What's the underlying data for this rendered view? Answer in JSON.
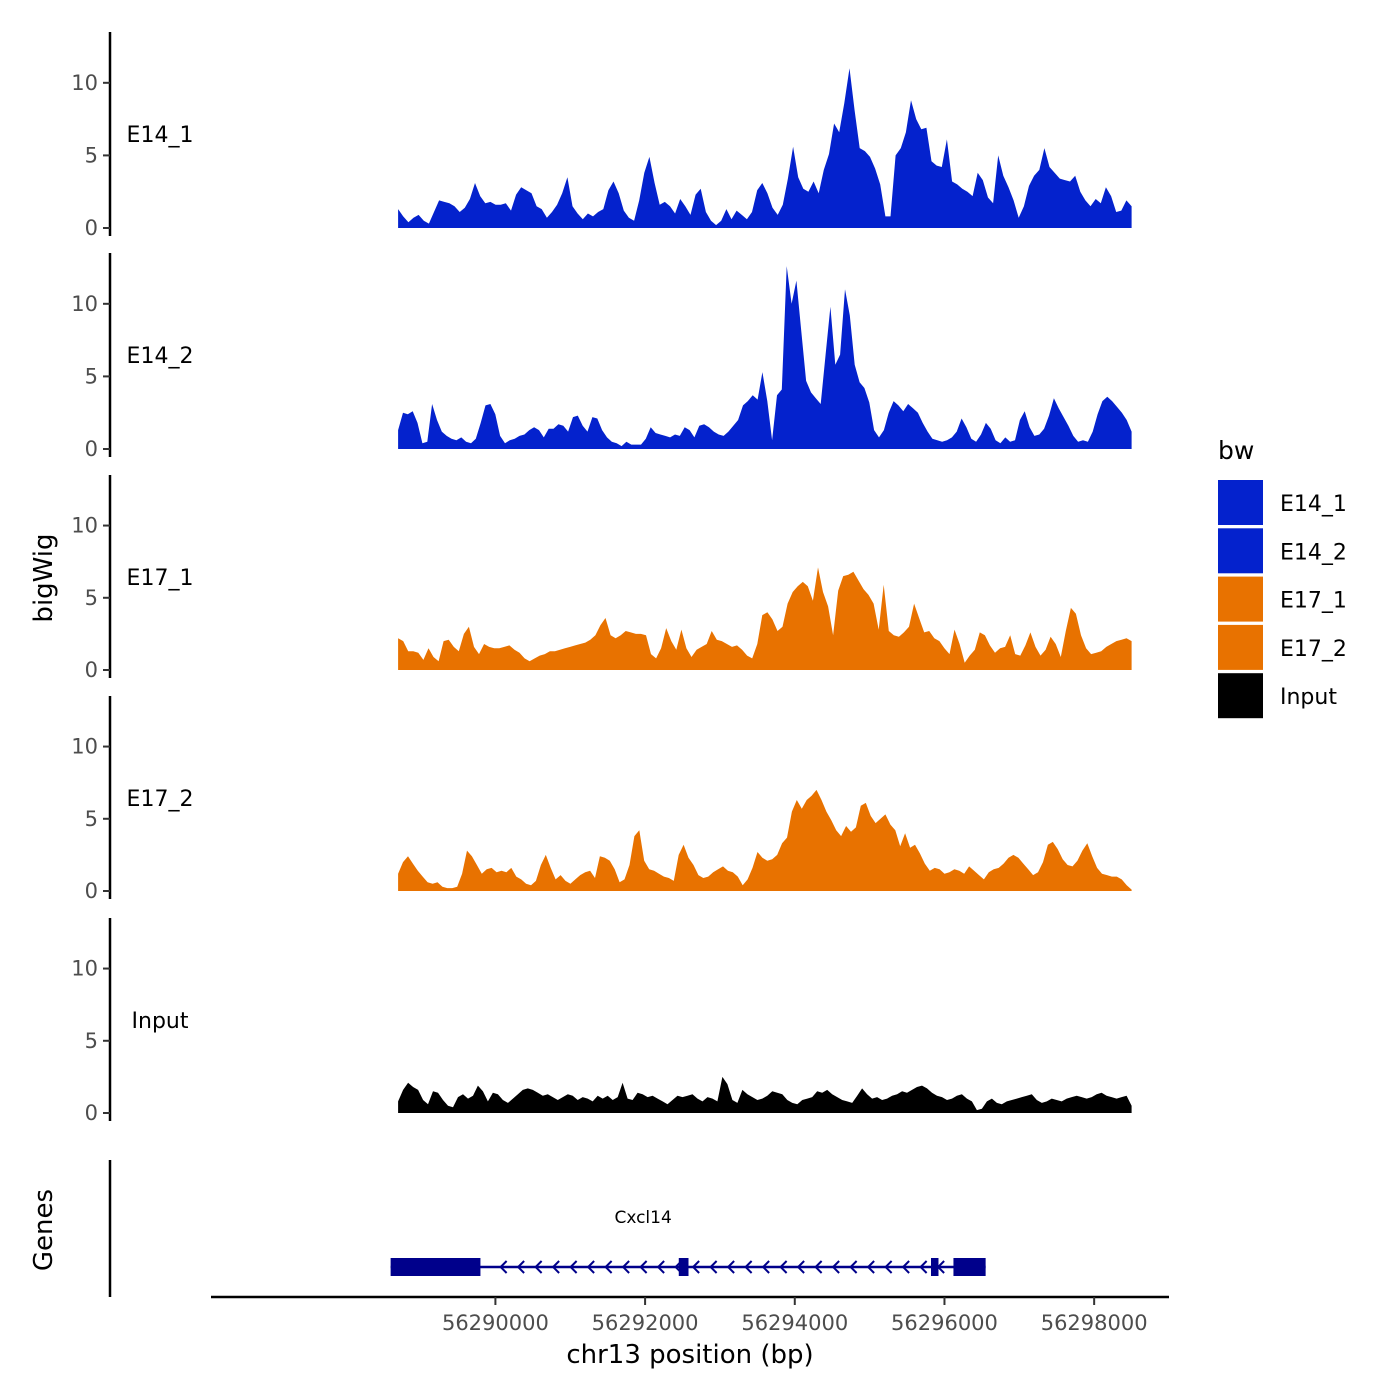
{
  "chart_data": {
    "type": "area",
    "ylabel": "bigWig",
    "xlabel": "chr13 position (bp)",
    "ylim": [
      0,
      13.5
    ],
    "xlim": [
      56286200,
      56299000
    ],
    "y_ticks": [
      0,
      5,
      10
    ],
    "x_ticks": [
      56290000,
      56292000,
      56294000,
      56296000,
      56298000
    ],
    "x_tick_labels": [
      "56290000",
      "56292000",
      "56294000",
      "56296000",
      "56298000"
    ],
    "x_range_data": [
      56288700,
      56298500
    ],
    "tracks": [
      {
        "name": "E14_1",
        "label": "E14_1",
        "color": "#0422CD",
        "values": [
          1.3,
          0.8,
          0.4,
          0.7,
          0.9,
          0.5,
          0.3,
          1.1,
          1.9,
          1.8,
          1.7,
          1.5,
          1.1,
          1.4,
          2.0,
          3.1,
          2.2,
          1.7,
          1.8,
          1.6,
          1.6,
          1.7,
          1.2,
          2.3,
          2.8,
          2.6,
          2.4,
          1.5,
          1.3,
          0.7,
          1.1,
          1.6,
          2.4,
          3.5,
          1.5,
          1.0,
          0.6,
          1.0,
          0.8,
          1.1,
          1.3,
          2.6,
          3.2,
          2.4,
          1.2,
          0.7,
          0.5,
          1.9,
          3.8,
          4.9,
          3.1,
          1.6,
          1.8,
          1.5,
          1.0,
          2.0,
          1.5,
          0.9,
          2.3,
          2.7,
          1.1,
          0.5,
          0.2,
          0.5,
          1.3,
          0.6,
          1.2,
          0.9,
          0.6,
          1.1,
          2.6,
          3.1,
          2.4,
          1.4,
          0.9,
          1.6,
          3.4,
          5.6,
          3.5,
          2.7,
          2.5,
          3.2,
          2.4,
          4.0,
          5.1,
          7.2,
          6.6,
          8.6,
          11.0,
          8.1,
          5.5,
          5.3,
          4.9,
          4.1,
          3.0,
          0.8,
          0.8,
          5.0,
          5.5,
          6.6,
          8.8,
          7.5,
          6.8,
          6.9,
          4.6,
          4.3,
          4.2,
          6.1,
          3.2,
          3.0,
          2.7,
          2.5,
          2.2,
          3.8,
          3.3,
          2.1,
          1.7,
          5.0,
          3.6,
          2.8,
          1.9,
          0.7,
          1.5,
          2.9,
          3.6,
          4.0,
          5.5,
          4.2,
          3.8,
          3.4,
          3.3,
          3.2,
          3.6,
          2.5,
          1.9,
          1.5,
          2.0,
          1.7,
          2.8,
          2.2,
          1.1,
          1.2,
          1.9,
          1.5
        ]
      },
      {
        "name": "E14_2",
        "label": "E14_2",
        "color": "#0422CD",
        "values": [
          1.3,
          2.5,
          2.4,
          2.6,
          1.8,
          0.4,
          0.5,
          3.1,
          2.0,
          1.2,
          0.9,
          0.7,
          0.6,
          0.8,
          0.5,
          0.4,
          0.7,
          1.8,
          3.0,
          3.1,
          2.4,
          0.9,
          0.4,
          0.6,
          0.7,
          0.9,
          1.0,
          1.3,
          1.5,
          1.3,
          0.8,
          1.4,
          1.4,
          1.7,
          1.6,
          1.2,
          2.2,
          2.3,
          1.6,
          1.2,
          2.2,
          2.1,
          1.3,
          0.8,
          0.5,
          0.4,
          0.2,
          0.5,
          0.3,
          0.3,
          0.3,
          0.7,
          1.5,
          1.1,
          1.0,
          0.9,
          0.8,
          1.0,
          0.9,
          1.5,
          1.3,
          0.8,
          1.6,
          1.7,
          1.5,
          1.2,
          1.0,
          0.9,
          1.2,
          1.6,
          2.0,
          3.0,
          3.3,
          3.7,
          3.4,
          5.3,
          3.3,
          0.6,
          3.7,
          4.1,
          12.6,
          10.0,
          11.6,
          8.1,
          4.7,
          3.9,
          3.5,
          3.1,
          6.5,
          9.8,
          5.8,
          6.5,
          11.0,
          9.2,
          5.8,
          4.6,
          4.2,
          3.2,
          1.3,
          0.8,
          1.3,
          2.5,
          3.3,
          3.0,
          2.6,
          3.1,
          2.8,
          2.5,
          1.8,
          1.2,
          0.7,
          0.6,
          0.5,
          0.6,
          0.8,
          1.2,
          2.1,
          1.5,
          0.7,
          0.5,
          1.0,
          1.8,
          1.4,
          0.6,
          0.4,
          0.8,
          0.5,
          0.6,
          2.0,
          2.6,
          1.5,
          0.9,
          1.0,
          1.4,
          2.3,
          3.5,
          2.8,
          2.2,
          1.6,
          0.9,
          0.5,
          0.6,
          0.5,
          1.2,
          2.4,
          3.3,
          3.6,
          3.3,
          2.9,
          2.5,
          2.0,
          1.2
        ]
      },
      {
        "name": "E17_1",
        "label": "E17_1",
        "color": "#E87200",
        "values": [
          2.2,
          2.0,
          1.3,
          1.3,
          1.2,
          0.7,
          1.5,
          0.9,
          0.6,
          2.0,
          2.1,
          1.6,
          1.3,
          2.5,
          3.0,
          1.6,
          1.1,
          1.8,
          1.6,
          1.5,
          1.5,
          1.6,
          1.7,
          1.4,
          1.2,
          0.8,
          0.6,
          0.8,
          1.0,
          1.1,
          1.3,
          1.3,
          1.4,
          1.5,
          1.6,
          1.7,
          1.8,
          1.9,
          2.1,
          2.4,
          3.1,
          3.6,
          2.4,
          2.2,
          2.4,
          2.7,
          2.6,
          2.5,
          2.5,
          2.4,
          1.1,
          0.8,
          1.5,
          2.9,
          2.0,
          1.4,
          2.8,
          1.5,
          0.9,
          1.4,
          1.6,
          1.8,
          2.7,
          2.1,
          2.0,
          1.8,
          1.6,
          1.7,
          1.4,
          1.0,
          0.8,
          1.8,
          3.8,
          4.0,
          3.5,
          2.7,
          3.0,
          4.6,
          5.4,
          5.8,
          6.1,
          5.8,
          4.8,
          7.1,
          5.4,
          4.4,
          2.4,
          5.5,
          6.5,
          6.6,
          6.8,
          6.2,
          5.6,
          5.2,
          4.6,
          2.8,
          5.9,
          2.7,
          2.4,
          2.3,
          2.6,
          3.0,
          4.6,
          3.6,
          2.6,
          2.7,
          2.2,
          2.0,
          1.5,
          1.1,
          2.8,
          1.8,
          0.5,
          1.0,
          1.4,
          2.6,
          2.4,
          1.7,
          1.2,
          1.5,
          1.6,
          2.4,
          1.1,
          1.0,
          1.7,
          2.6,
          1.6,
          1.0,
          1.4,
          2.3,
          1.8,
          0.9,
          2.7,
          4.3,
          3.9,
          2.4,
          1.5,
          1.1,
          1.2,
          1.3,
          1.6,
          1.8,
          2.0,
          2.1,
          2.2,
          2.0
        ]
      },
      {
        "name": "E17_2",
        "label": "E17_2",
        "color": "#E87200",
        "values": [
          1.2,
          2.0,
          2.4,
          1.9,
          1.4,
          1.0,
          0.6,
          0.5,
          0.6,
          0.3,
          0.2,
          0.2,
          0.3,
          1.2,
          2.8,
          2.4,
          1.8,
          1.2,
          1.5,
          1.6,
          1.3,
          1.4,
          1.3,
          1.6,
          1.0,
          0.8,
          0.5,
          0.4,
          0.7,
          1.8,
          2.5,
          1.6,
          0.8,
          1.1,
          0.7,
          0.5,
          0.8,
          1.1,
          1.3,
          1.4,
          0.9,
          2.4,
          2.3,
          2.1,
          1.5,
          0.6,
          0.8,
          1.8,
          3.8,
          4.2,
          2.1,
          1.5,
          1.4,
          1.2,
          1.0,
          0.9,
          0.7,
          2.5,
          3.2,
          2.3,
          1.8,
          1.1,
          0.9,
          1.0,
          1.3,
          1.5,
          1.7,
          1.4,
          1.3,
          1.0,
          0.4,
          0.8,
          1.6,
          2.7,
          2.3,
          2.1,
          2.2,
          2.5,
          3.3,
          3.7,
          5.5,
          6.3,
          5.7,
          6.3,
          6.6,
          7.0,
          6.3,
          5.5,
          4.9,
          4.2,
          3.8,
          4.5,
          4.1,
          4.4,
          5.9,
          6.1,
          5.2,
          4.7,
          5.0,
          5.3,
          4.6,
          4.2,
          3.1,
          4.0,
          3.0,
          3.2,
          2.6,
          1.9,
          1.4,
          1.6,
          1.5,
          1.2,
          1.3,
          1.5,
          1.4,
          1.2,
          1.7,
          1.4,
          1.1,
          0.8,
          1.3,
          1.5,
          1.6,
          1.9,
          2.3,
          2.5,
          2.3,
          1.9,
          1.5,
          1.1,
          1.3,
          2.0,
          3.2,
          3.4,
          2.9,
          2.2,
          1.8,
          1.7,
          2.1,
          2.8,
          3.3,
          2.4,
          1.6,
          1.2,
          1.1,
          1.0,
          1.0,
          0.8,
          0.4,
          0.1
        ]
      },
      {
        "name": "Input",
        "label": "Input",
        "color": "#000000",
        "values": [
          0.8,
          1.6,
          2.1,
          1.8,
          1.6,
          0.9,
          0.6,
          1.5,
          1.4,
          0.9,
          0.5,
          0.4,
          1.1,
          1.3,
          1.0,
          1.2,
          1.9,
          1.5,
          0.8,
          1.4,
          1.3,
          0.9,
          0.7,
          1.0,
          1.3,
          1.6,
          1.7,
          1.6,
          1.4,
          1.2,
          1.3,
          1.1,
          0.9,
          1.1,
          1.3,
          1.2,
          0.9,
          1.1,
          1.0,
          0.8,
          1.2,
          1.0,
          1.2,
          0.9,
          1.1,
          2.1,
          1.0,
          0.9,
          1.4,
          1.3,
          1.1,
          1.2,
          1.0,
          0.8,
          0.6,
          0.9,
          1.2,
          1.1,
          1.2,
          1.3,
          1.0,
          0.8,
          1.1,
          1.0,
          0.8,
          2.5,
          2.0,
          0.9,
          0.7,
          1.6,
          1.3,
          1.1,
          0.9,
          1.0,
          1.2,
          1.5,
          1.4,
          1.3,
          0.9,
          0.7,
          0.6,
          0.9,
          1.0,
          1.1,
          1.5,
          1.4,
          1.6,
          1.3,
          1.1,
          0.9,
          0.8,
          0.7,
          1.2,
          1.7,
          1.3,
          1.0,
          1.1,
          0.9,
          1.0,
          1.2,
          1.3,
          1.5,
          1.4,
          1.6,
          1.8,
          1.9,
          1.7,
          1.4,
          1.2,
          1.1,
          0.9,
          1.0,
          1.2,
          1.3,
          1.0,
          0.8,
          0.2,
          0.3,
          0.8,
          1.0,
          0.7,
          0.6,
          0.8,
          0.9,
          1.0,
          1.1,
          1.2,
          1.3,
          0.9,
          0.7,
          0.8,
          1.0,
          0.9,
          0.8,
          1.0,
          1.1,
          1.2,
          1.1,
          1.0,
          1.1,
          1.3,
          1.4,
          1.2,
          1.1,
          1.0,
          1.1,
          1.2,
          0.5
        ]
      }
    ],
    "legend": {
      "title": "bw",
      "position": "right",
      "entries": [
        {
          "label": "E14_1",
          "color": "#0422CD"
        },
        {
          "label": "E14_2",
          "color": "#0422CD"
        },
        {
          "label": "E17_1",
          "color": "#E87200"
        },
        {
          "label": "E17_2",
          "color": "#E87200"
        },
        {
          "label": "Input",
          "color": "#000000"
        }
      ]
    },
    "genes": {
      "panel_label": "Genes",
      "color": "#00008B",
      "items": [
        {
          "name": "Cxcl14",
          "start": 56288600,
          "end": 56296550,
          "strand": "-",
          "exons": [
            [
              56288600,
              56289800
            ],
            [
              56292450,
              56292580
            ],
            [
              56295820,
              56295920
            ],
            [
              56296120,
              56296550
            ]
          ]
        }
      ]
    }
  }
}
